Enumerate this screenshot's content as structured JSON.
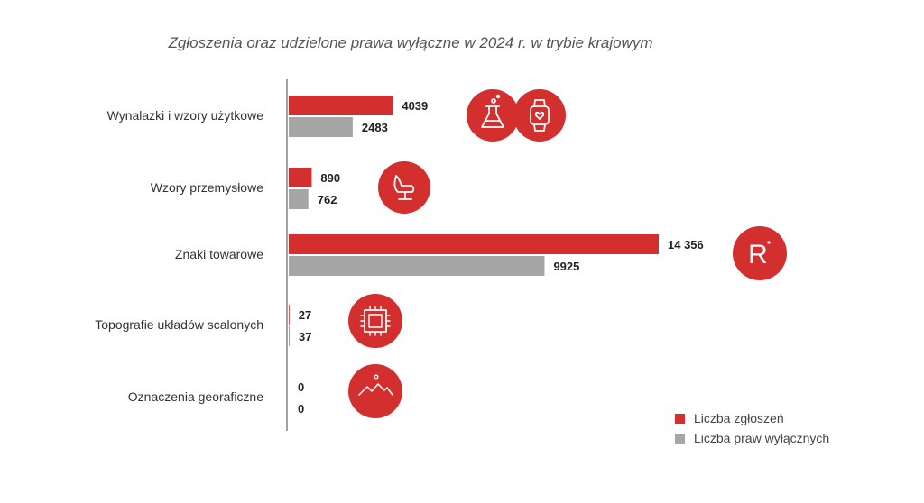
{
  "chart_data": {
    "type": "bar",
    "orientation": "horizontal",
    "title": "Zgłoszenia oraz udzielone prawa wyłączne w 2024 r. w trybie krajowym",
    "categories": [
      "Wynalazki i wzory użytkowe",
      "Wzory przemysłowe",
      "Znaki towarowe",
      "Topografie układów scalonych",
      "Oznaczenia georaficzne"
    ],
    "series": [
      {
        "name": "Liczba zgłoszeń",
        "values": [
          4039,
          890,
          14356,
          27,
          0
        ],
        "labels": [
          "4039",
          "890",
          "14 356",
          "27",
          "0"
        ],
        "color": "#d42f2f"
      },
      {
        "name": "Liczba praw wyłącznych",
        "values": [
          2483,
          762,
          9925,
          37,
          0
        ],
        "labels": [
          "2483",
          "762",
          "9925",
          "37",
          "0"
        ],
        "color": "#a6a6a6"
      }
    ],
    "xlim": [
      0,
      14356
    ],
    "grid": false,
    "legend_position": "bottom-right",
    "icons": [
      [
        "flask-icon",
        "smartwatch-icon"
      ],
      [
        "armchair-icon"
      ],
      [
        "registered-mark-icon"
      ],
      [
        "microchip-icon"
      ],
      [
        "mountains-icon"
      ]
    ],
    "icon_color": "#d42f2f"
  }
}
